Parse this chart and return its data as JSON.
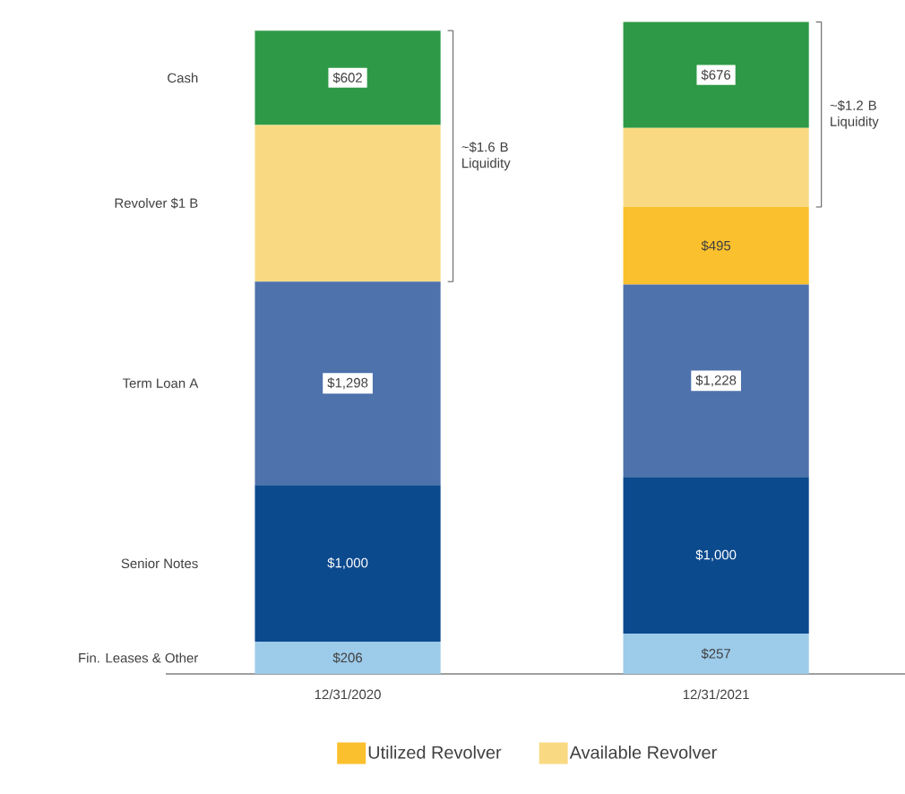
{
  "chart_data": {
    "type": "bar",
    "stacked": true,
    "legend": "bottom",
    "categories": [
      "12/31/2020",
      "12/31/2021"
    ],
    "series": [
      {
        "color": "#9dcbea",
        "values": [
          206,
          257
        ],
        "value_labels": [
          "$206",
          "$257"
        ]
      },
      {
        "color": "#0c4a8e",
        "values": [
          1000,
          1000
        ],
        "value_labels": [
          "$1,000",
          "$1,000"
        ]
      },
      {
        "color": "#4e72ac",
        "values": [
          1298,
          1228
        ],
        "value_labels": [
          "$1,298",
          "$1,228"
        ]
      },
      {
        "name": "Utilized Revolver",
        "color": "#fbc02d",
        "values": [
          0,
          495
        ],
        "value_labels": [
          null,
          "$495"
        ]
      },
      {
        "name": "Available Revolver",
        "color": "#f9da82",
        "values": [
          1000,
          505
        ]
      },
      {
        "color": "#2e9a47",
        "values": [
          602,
          676
        ],
        "value_labels": [
          "$602",
          "$676"
        ]
      }
    ],
    "annotations": [
      "Fin. Leases & Other",
      "Senior Notes",
      "Term Loan A",
      "Revolver $1 B",
      "Cash",
      "~$1.6 B Liquidity",
      "~$1.2 B Liquidity"
    ]
  }
}
